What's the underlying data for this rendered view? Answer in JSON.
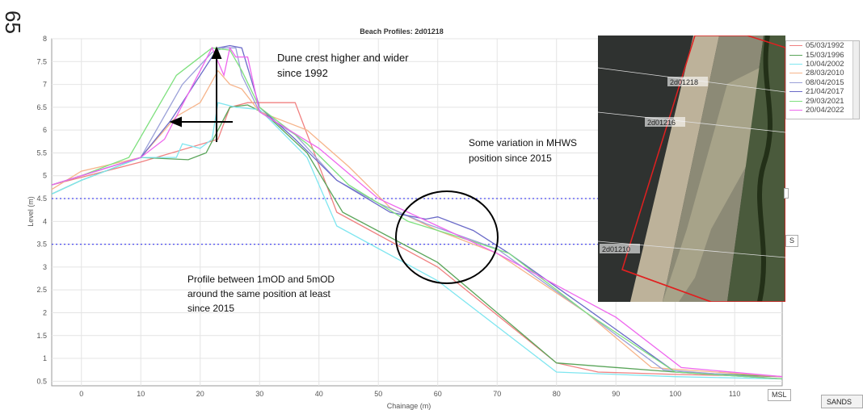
{
  "page_number": "65",
  "annotations": {
    "dune": [
      "Dune crest higher and wider",
      "since 1992"
    ],
    "mhws": [
      "Some variation in MHWS",
      "position since 2015"
    ],
    "profile": [
      "Profile between 1mOD and 5mOD",
      "around the same position at least",
      "since 2015"
    ]
  },
  "tags": {
    "mhws": "S",
    "msl": "MSL",
    "sands": "SANDS"
  },
  "aerial": {
    "labels": [
      "2d01218",
      "2d01216",
      "2d01210"
    ]
  },
  "colors": [
    "#f08080",
    "#5aa55a",
    "#7fe6f0",
    "#f6b48a",
    "#9aa0d8",
    "#6a6ac8",
    "#7ee07e",
    "#ee66ee"
  ],
  "chart_data": {
    "type": "line",
    "title": "Beach Profiles: 2d01218",
    "xlabel": "Chainage (m)",
    "ylabel": "Level (m)",
    "xlim": [
      -5,
      118
    ],
    "ylim": [
      0.4,
      8
    ],
    "xticks": [
      0,
      10,
      20,
      30,
      40,
      50,
      60,
      70,
      80,
      90,
      100,
      110
    ],
    "yticks": [
      0.5,
      1,
      1.5,
      2,
      2.5,
      3,
      3.5,
      4,
      4.5,
      5,
      5.5,
      6,
      6.5,
      7,
      7.5,
      8
    ],
    "grid": true,
    "legend_position": "top-right",
    "reference_lines": [
      4.5,
      3.5
    ],
    "series": [
      {
        "name": "05/03/1992",
        "color": "#f08080",
        "points": [
          [
            -5,
            4.8
          ],
          [
            10,
            5.3
          ],
          [
            23,
            5.8
          ],
          [
            25,
            6.5
          ],
          [
            28,
            6.6
          ],
          [
            36,
            6.6
          ],
          [
            43,
            4.2
          ],
          [
            60,
            3.0
          ],
          [
            80,
            0.9
          ],
          [
            87,
            0.7
          ],
          [
            100,
            0.65
          ],
          [
            118,
            0.6
          ]
        ]
      },
      {
        "name": "15/03/1996",
        "color": "#5aa55a",
        "points": [
          [
            -5,
            4.6
          ],
          [
            0,
            4.9
          ],
          [
            10,
            5.4
          ],
          [
            18,
            5.35
          ],
          [
            21,
            5.5
          ],
          [
            23,
            6.0
          ],
          [
            25,
            6.5
          ],
          [
            28,
            6.55
          ],
          [
            31,
            6.35
          ],
          [
            38,
            5.5
          ],
          [
            44,
            4.2
          ],
          [
            60,
            3.1
          ],
          [
            80,
            0.9
          ],
          [
            100,
            0.7
          ],
          [
            118,
            0.6
          ]
        ]
      },
      {
        "name": "10/04/2002",
        "color": "#7fe6f0",
        "points": [
          [
            -5,
            4.6
          ],
          [
            0,
            4.9
          ],
          [
            10,
            5.4
          ],
          [
            16,
            5.4
          ],
          [
            17,
            5.7
          ],
          [
            20,
            5.6
          ],
          [
            22,
            5.8
          ],
          [
            23,
            6.6
          ],
          [
            26,
            6.5
          ],
          [
            30,
            6.45
          ],
          [
            38,
            5.4
          ],
          [
            43,
            3.9
          ],
          [
            60,
            2.7
          ],
          [
            80,
            0.7
          ],
          [
            100,
            0.6
          ],
          [
            118,
            0.55
          ]
        ]
      },
      {
        "name": "28/03/2010",
        "color": "#f6b48a",
        "points": [
          [
            -5,
            4.7
          ],
          [
            0,
            5.1
          ],
          [
            10,
            5.4
          ],
          [
            16,
            6.3
          ],
          [
            20,
            6.6
          ],
          [
            23,
            7.3
          ],
          [
            25,
            7.0
          ],
          [
            27,
            6.9
          ],
          [
            30,
            6.4
          ],
          [
            38,
            6.0
          ],
          [
            45,
            5.2
          ],
          [
            52,
            4.3
          ],
          [
            60,
            3.8
          ],
          [
            70,
            3.3
          ],
          [
            85,
            2.0
          ],
          [
            96,
            0.8
          ],
          [
            118,
            0.6
          ]
        ]
      },
      {
        "name": "08/04/2015",
        "color": "#9aa0d8",
        "points": [
          [
            -5,
            4.8
          ],
          [
            0,
            5.0
          ],
          [
            10,
            5.4
          ],
          [
            17,
            7.0
          ],
          [
            22,
            7.7
          ],
          [
            24,
            7.8
          ],
          [
            26,
            7.8
          ],
          [
            27,
            7.2
          ],
          [
            30,
            6.4
          ],
          [
            36,
            5.9
          ],
          [
            43,
            4.9
          ],
          [
            50,
            4.4
          ],
          [
            58,
            3.95
          ],
          [
            70,
            3.4
          ],
          [
            85,
            2.0
          ],
          [
            98,
            0.75
          ],
          [
            118,
            0.55
          ]
        ]
      },
      {
        "name": "21/04/2017",
        "color": "#6a6ac8",
        "points": [
          [
            -5,
            4.8
          ],
          [
            0,
            5.0
          ],
          [
            10,
            5.4
          ],
          [
            15,
            6.2
          ],
          [
            20,
            7.2
          ],
          [
            23,
            7.8
          ],
          [
            25,
            7.85
          ],
          [
            27,
            7.8
          ],
          [
            30,
            6.5
          ],
          [
            36,
            5.8
          ],
          [
            43,
            4.9
          ],
          [
            52,
            4.2
          ],
          [
            58,
            4.05
          ],
          [
            60,
            4.1
          ],
          [
            66,
            3.8
          ],
          [
            72,
            3.3
          ],
          [
            85,
            2.1
          ],
          [
            100,
            0.7
          ],
          [
            118,
            0.55
          ]
        ]
      },
      {
        "name": "29/03/2021",
        "color": "#7ee07e",
        "points": [
          [
            -5,
            4.8
          ],
          [
            0,
            5.0
          ],
          [
            8,
            5.4
          ],
          [
            16,
            7.2
          ],
          [
            22,
            7.8
          ],
          [
            25,
            7.75
          ],
          [
            27,
            7.3
          ],
          [
            30,
            6.5
          ],
          [
            38,
            5.7
          ],
          [
            45,
            4.8
          ],
          [
            55,
            4.0
          ],
          [
            65,
            3.6
          ],
          [
            72,
            3.3
          ],
          [
            85,
            2.0
          ],
          [
            100,
            0.7
          ],
          [
            118,
            0.55
          ]
        ]
      },
      {
        "name": "20/04/2022",
        "color": "#ee66ee",
        "points": [
          [
            -5,
            4.8
          ],
          [
            0,
            5.0
          ],
          [
            10,
            5.4
          ],
          [
            14,
            5.8
          ],
          [
            18,
            6.8
          ],
          [
            22,
            7.8
          ],
          [
            24,
            7.2
          ],
          [
            25,
            7.8
          ],
          [
            26,
            7.6
          ],
          [
            28,
            7.6
          ],
          [
            30,
            6.4
          ],
          [
            40,
            5.6
          ],
          [
            50,
            4.5
          ],
          [
            60,
            3.9
          ],
          [
            70,
            3.3
          ],
          [
            90,
            1.9
          ],
          [
            101,
            0.8
          ],
          [
            118,
            0.6
          ]
        ]
      }
    ]
  }
}
